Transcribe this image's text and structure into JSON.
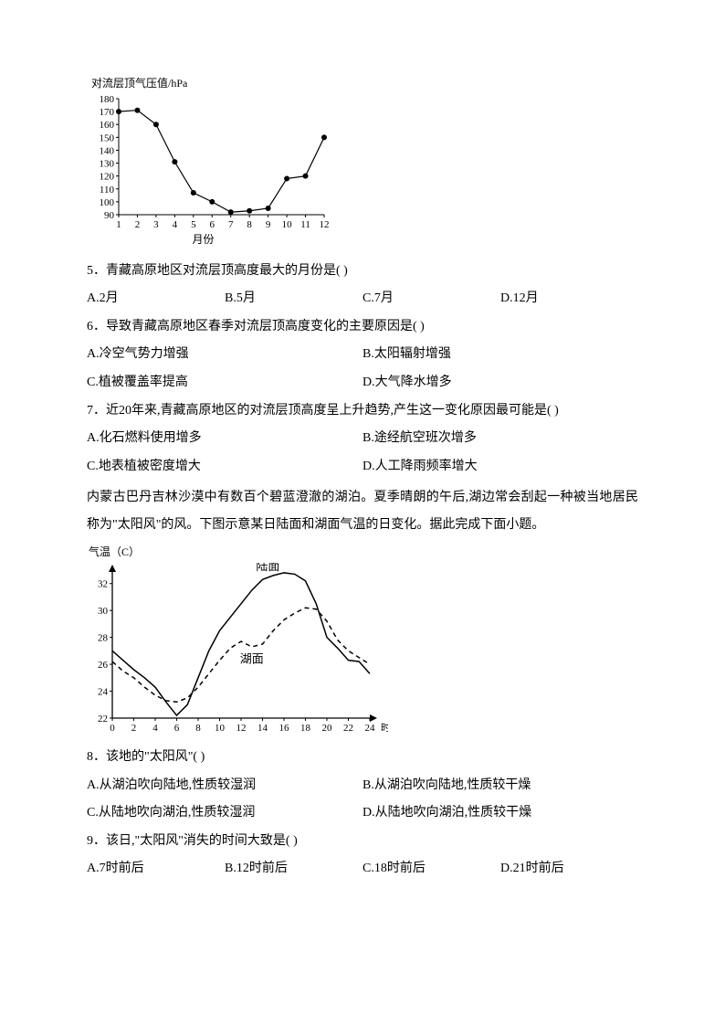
{
  "chart1": {
    "type": "line",
    "ylabel": "对流层顶气压值/hPa",
    "xlabel": "月份",
    "x_values": [
      1,
      2,
      3,
      4,
      5,
      6,
      7,
      8,
      9,
      10,
      11,
      12
    ],
    "y_values": [
      170,
      171,
      160,
      131,
      107,
      100,
      92,
      93,
      95,
      118,
      120,
      150
    ],
    "ylim": [
      90,
      180
    ],
    "ytick_step": 10,
    "yticks": [
      90,
      100,
      110,
      120,
      130,
      140,
      150,
      160,
      170,
      180
    ],
    "xlim": [
      1,
      12
    ],
    "xticks": [
      1,
      2,
      3,
      4,
      5,
      6,
      7,
      8,
      9,
      10,
      11,
      12
    ],
    "line_color": "#000000",
    "marker": "dot",
    "marker_size": 3,
    "label_fontsize": 12,
    "tick_fontsize": 11,
    "background_color": "#ffffff"
  },
  "q5": {
    "text": "5．青藏高原地区对流层顶高度最大的月份是(   )",
    "A": "A.2月",
    "B": "B.5月",
    "C": "C.7月",
    "D": "D.12月"
  },
  "q6": {
    "text": "6．导致青藏高原地区春季对流层顶高度变化的主要原因是(   )",
    "A": "A.冷空气势力增强",
    "B": "B.太阳辐射增强",
    "C": "C.植被覆盖率提高",
    "D": "D.大气降水增多"
  },
  "q7": {
    "text": "7．近20年来,青藏高原地区的对流层顶高度呈上升趋势,产生这一变化原因最可能是(   )",
    "A": "A.化石燃料使用增多",
    "B": "B.途经航空班次增多",
    "C": "C.地表植被密度增大",
    "D": "D.人工降雨频率增大"
  },
  "passage2": "内蒙古巴丹吉林沙漠中有数百个碧蓝澄澈的湖泊。夏季晴朗的午后,湖边常会刮起一种被当地居民称为\"太阳风\"的风。下图示意某日陆面和湖面气温的日变化。据此完成下面小题。",
  "chart2": {
    "type": "line",
    "ylabel": "气温（C）",
    "series": [
      {
        "name": "陆面",
        "style": "solid",
        "color": "#000000",
        "x": [
          0,
          1,
          2,
          3,
          4,
          5,
          6,
          7,
          8,
          9,
          10,
          11,
          12,
          13,
          14,
          15,
          16,
          17,
          18,
          19,
          20,
          21,
          22,
          23,
          24
        ],
        "y": [
          27,
          26.3,
          25.6,
          25,
          24.3,
          23.2,
          22.2,
          23,
          25,
          27,
          28.5,
          29.5,
          30.5,
          31.5,
          32.3,
          32.6,
          32.8,
          32.7,
          32.2,
          30.5,
          28,
          27.2,
          26.3,
          26.2,
          25.3
        ]
      },
      {
        "name": "湖面",
        "style": "dashed",
        "color": "#000000",
        "x": [
          0,
          1,
          2,
          3,
          4,
          5,
          6,
          7,
          8,
          9,
          10,
          11,
          12,
          13,
          14,
          15,
          16,
          17,
          18,
          19,
          20,
          21,
          22,
          23,
          24
        ],
        "y": [
          26.2,
          25.5,
          25,
          24.3,
          23.7,
          23.3,
          23.2,
          23.5,
          24.3,
          25.3,
          26.3,
          27.2,
          27.7,
          27.3,
          27.5,
          28.5,
          29.3,
          29.8,
          30.2,
          30.1,
          29.2,
          27.8,
          27,
          26.5,
          26
        ]
      }
    ],
    "ylim": [
      22,
      33
    ],
    "yticks": [
      22,
      24,
      26,
      28,
      30,
      32
    ],
    "xlim": [
      0,
      24
    ],
    "xticks": [
      0,
      2,
      4,
      6,
      8,
      10,
      12,
      14,
      16,
      18,
      20,
      22,
      24
    ],
    "xunit": "时",
    "line_width": 1.5,
    "label_fontsize": 12,
    "tick_fontsize": 11,
    "legend_land": "陆面",
    "legend_lake": "湖面",
    "background_color": "#ffffff"
  },
  "q8": {
    "text": "8．该地的\"太阳风\"(   )",
    "A": "A.从湖泊吹向陆地,性质较湿润",
    "B": "B.从湖泊吹向陆地,性质较干燥",
    "C": "C.从陆地吹向湖泊,性质较湿润",
    "D": "D.从陆地吹向湖泊,性质较干燥"
  },
  "q9": {
    "text": "9．该日,\"太阳风\"消失的时间大致是(   )",
    "A": "A.7时前后",
    "B": "B.12时前后",
    "C": "C.18时前后",
    "D": "D.21时前后"
  }
}
